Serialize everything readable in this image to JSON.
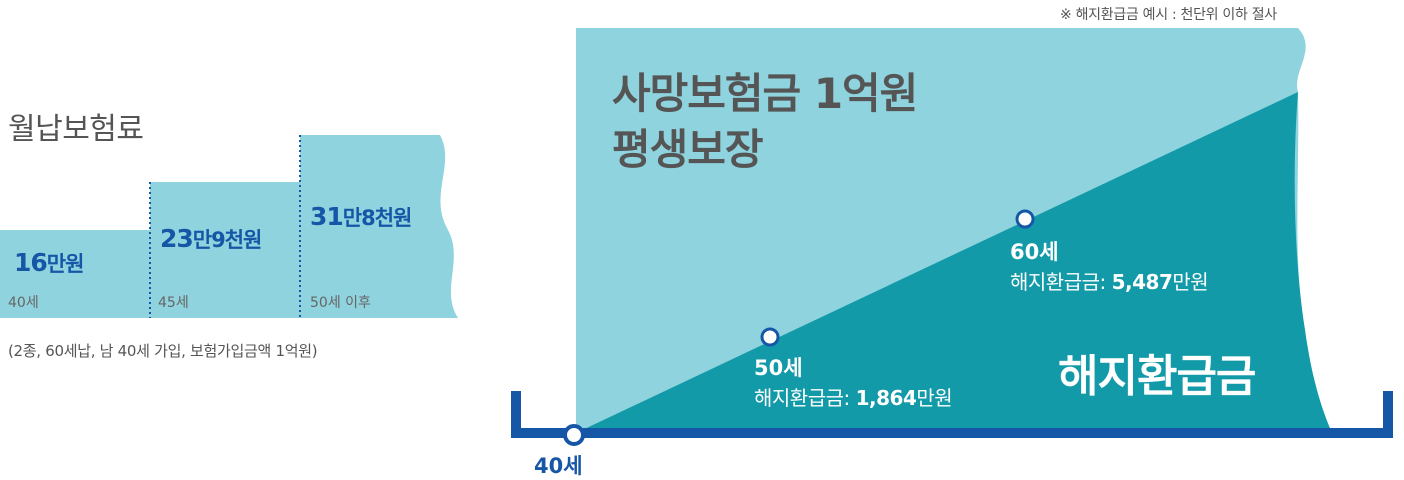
{
  "premium": {
    "title": "월납보험료",
    "steps": [
      {
        "amount_number": "16",
        "amount_unit": "만원",
        "age": "40세"
      },
      {
        "amount_number": "23",
        "amount_unit": "만9천원",
        "age": "45세"
      },
      {
        "amount_number": "31",
        "amount_unit": "만8천원",
        "age": "50세 이후"
      }
    ],
    "note": "(2종, 60세납, 남 40세 가입, 보험가입금액 1억원)"
  },
  "benefit": {
    "note": "※ 해지환급금 예시 : 천단위 이하 절사",
    "death_title_line1": "사망보험금 1억원",
    "death_title_line2": "평생보장",
    "milestones": [
      {
        "age": "50세",
        "refund_prefix": "해지환급금: ",
        "refund_value": "1,864",
        "refund_unit": "만원"
      },
      {
        "age": "60세",
        "refund_prefix": "해지환급금: ",
        "refund_value": "5,487",
        "refund_unit": "만원"
      }
    ],
    "refund_label": "해지환급금",
    "start_age": "40세"
  },
  "colors": {
    "light_teal": "#8fd3de",
    "dark_teal": "#129aa8",
    "navy": "#1557a6"
  }
}
